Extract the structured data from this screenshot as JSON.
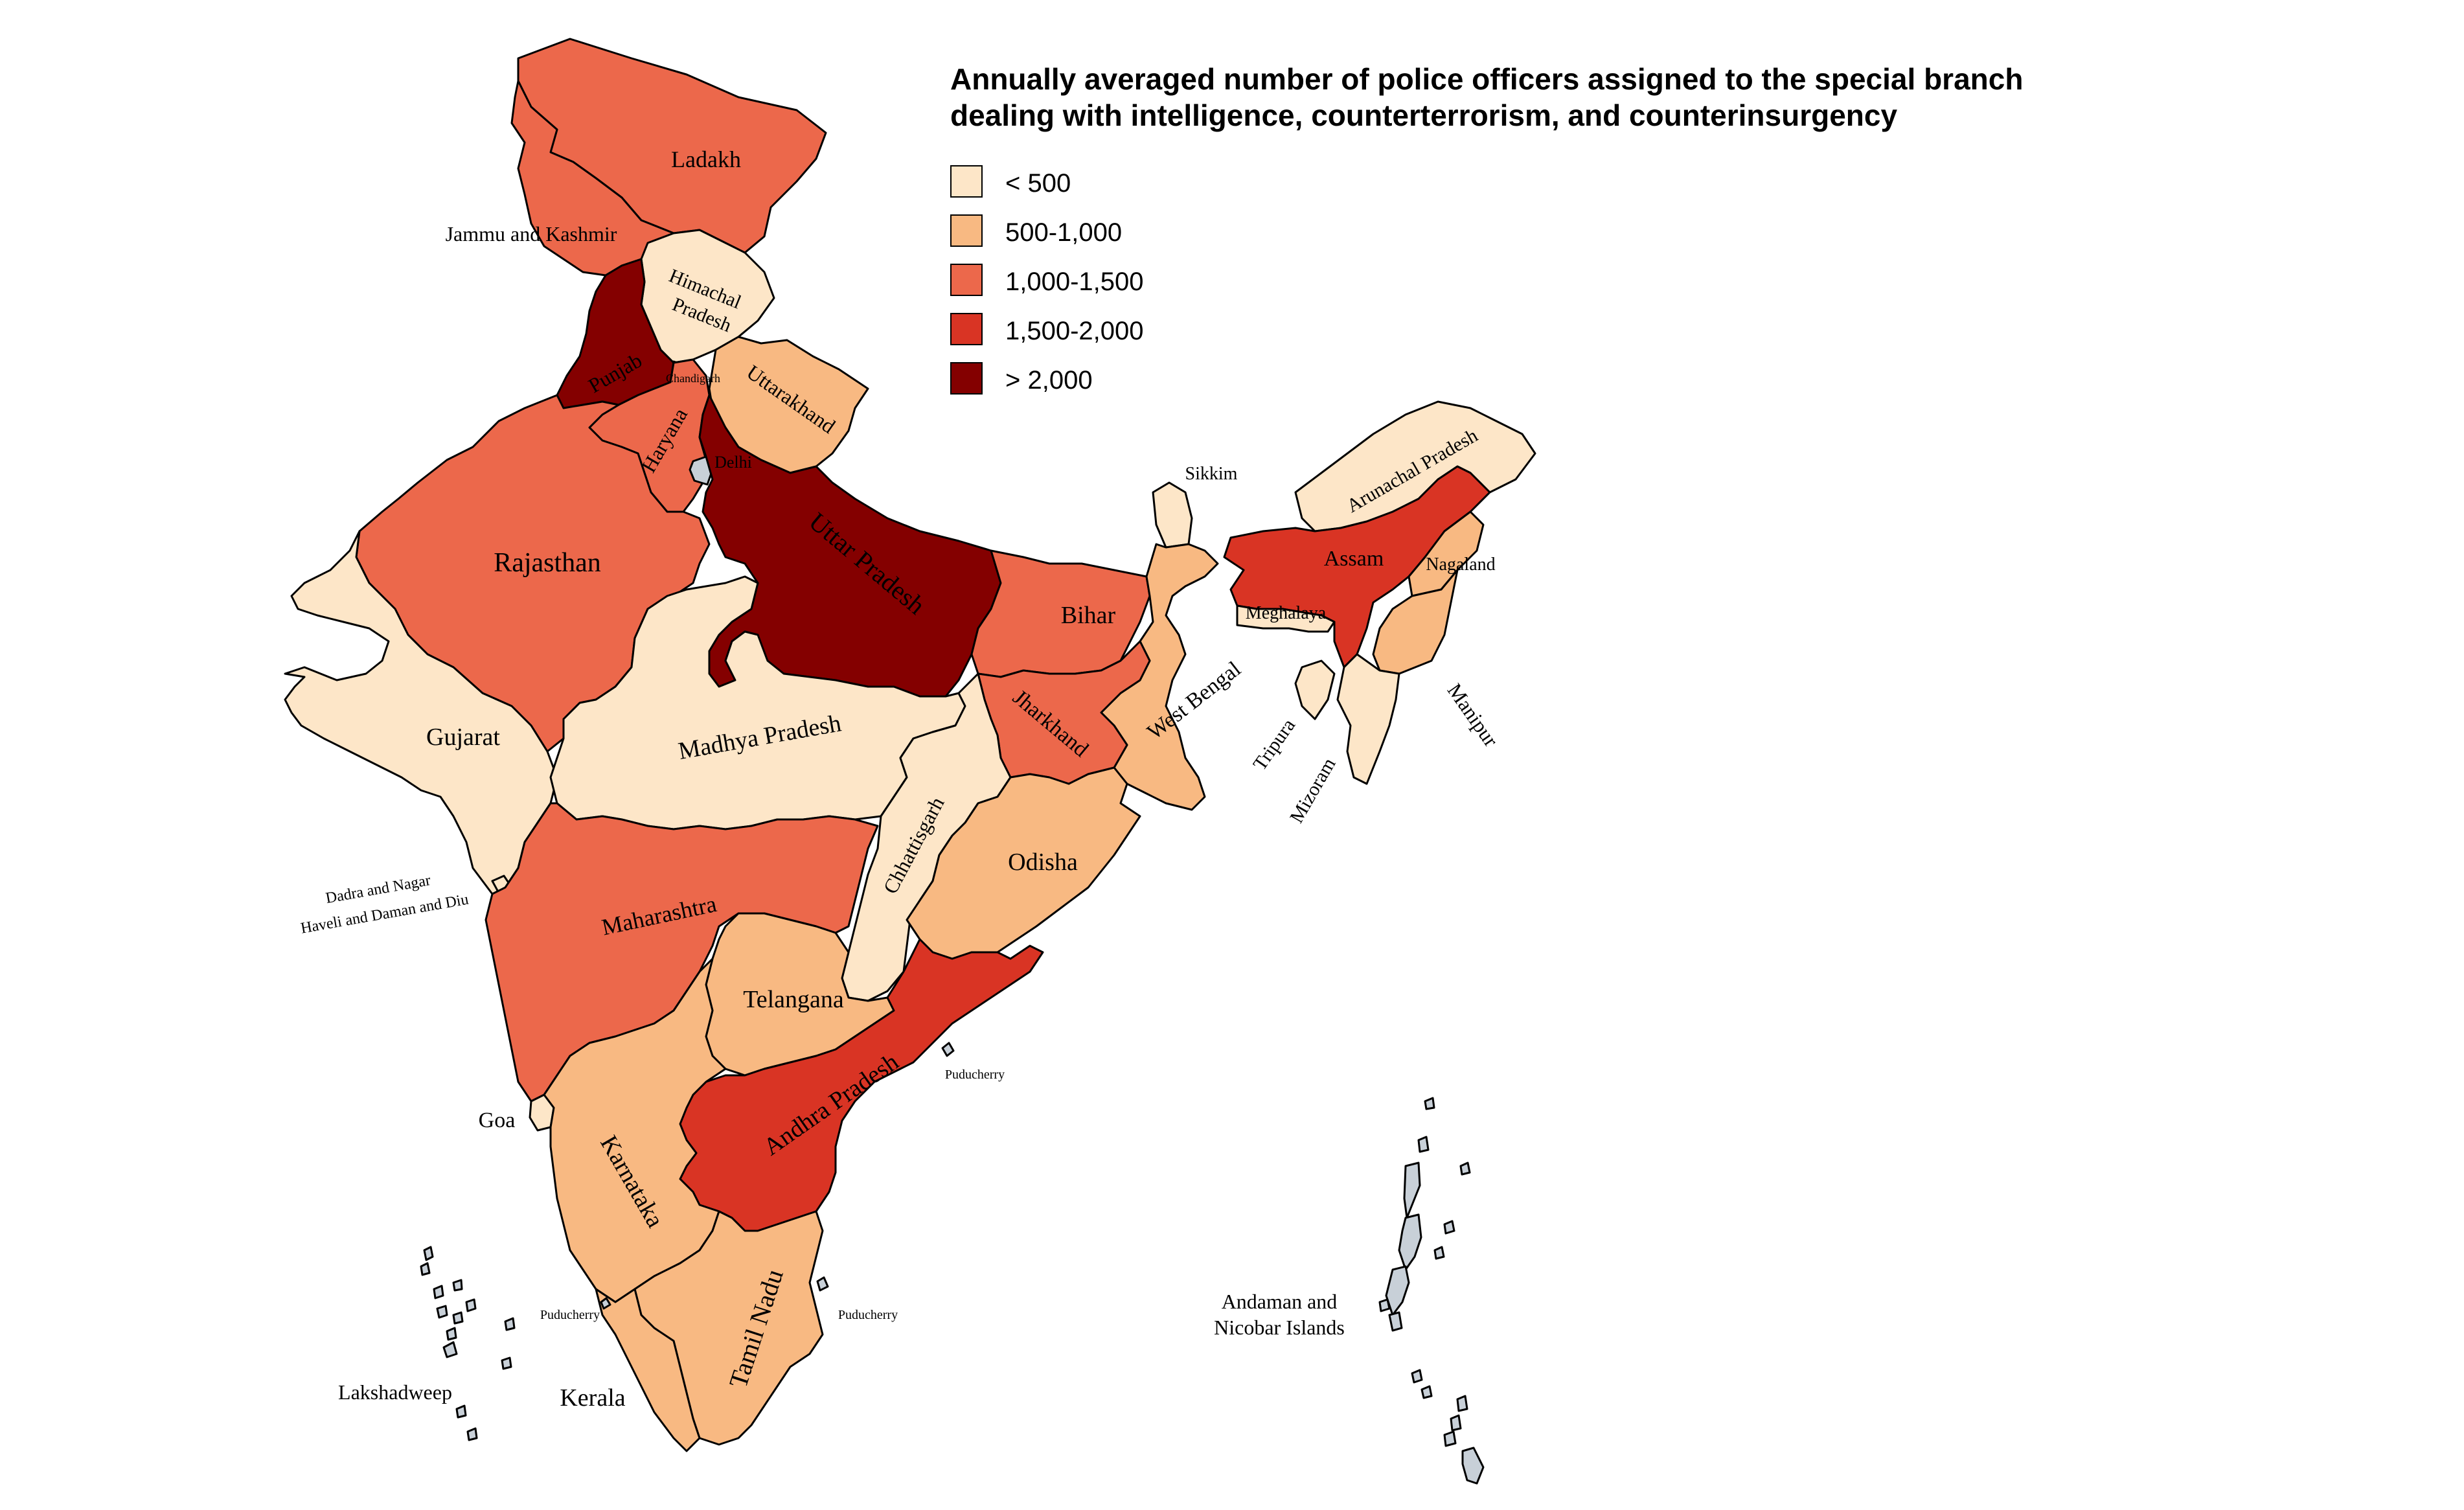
{
  "title": {
    "line1": "Annually averaged number of police officers assigned to the special branch",
    "line2": "dealing with intelligence, counterterrorism, and counterinsurgency"
  },
  "legend": [
    {
      "label": "< 500",
      "color": "#fde6c8"
    },
    {
      "label": "500-1,000",
      "color": "#f8b982"
    },
    {
      "label": "1,000-1,500",
      "color": "#ec684b"
    },
    {
      "label": "1,500-2,000",
      "color": "#d93424"
    },
    {
      "label": "> 2,000",
      "color": "#840000"
    }
  ],
  "no_data_color": "#c8d0d8",
  "regions": [
    {
      "name": "Ladakh",
      "category": "1,000-1,500"
    },
    {
      "name": "Jammu and Kashmir",
      "category": "1,000-1,500"
    },
    {
      "name": "Himachal Pradesh",
      "category": "< 500"
    },
    {
      "name": "Punjab",
      "category": "> 2,000"
    },
    {
      "name": "Chandigarh",
      "category": "< 500"
    },
    {
      "name": "Uttarakhand",
      "category": "500-1,000"
    },
    {
      "name": "Haryana",
      "category": "1,000-1,500"
    },
    {
      "name": "Delhi",
      "category": "no data"
    },
    {
      "name": "Rajasthan",
      "category": "1,000-1,500"
    },
    {
      "name": "Uttar Pradesh",
      "category": "> 2,000"
    },
    {
      "name": "Bihar",
      "category": "1,000-1,500"
    },
    {
      "name": "Sikkim",
      "category": "< 500"
    },
    {
      "name": "Arunachal Pradesh",
      "category": "< 500"
    },
    {
      "name": "Assam",
      "category": "1,500-2,000"
    },
    {
      "name": "Nagaland",
      "category": "500-1,000"
    },
    {
      "name": "Meghalaya",
      "category": "< 500"
    },
    {
      "name": "Manipur",
      "category": "500-1,000"
    },
    {
      "name": "Tripura",
      "category": "< 500"
    },
    {
      "name": "Mizoram",
      "category": "< 500"
    },
    {
      "name": "West Bengal",
      "category": "500-1,000"
    },
    {
      "name": "Jharkhand",
      "category": "1,000-1,500"
    },
    {
      "name": "Gujarat",
      "category": "< 500"
    },
    {
      "name": "Madhya Pradesh",
      "category": "< 500"
    },
    {
      "name": "Chhattisgarh",
      "category": "< 500"
    },
    {
      "name": "Odisha",
      "category": "500-1,000"
    },
    {
      "name": "Dadra and Nagar Haveli and Daman and Diu",
      "category": "< 500"
    },
    {
      "name": "Maharashtra",
      "category": "1,000-1,500"
    },
    {
      "name": "Telangana",
      "category": "500-1,000"
    },
    {
      "name": "Andhra Pradesh",
      "category": "1,500-2,000"
    },
    {
      "name": "Goa",
      "category": "< 500"
    },
    {
      "name": "Karnataka",
      "category": "500-1,000"
    },
    {
      "name": "Tamil Nadu",
      "category": "500-1,000"
    },
    {
      "name": "Kerala",
      "category": "500-1,000"
    },
    {
      "name": "Puducherry",
      "category": "no data"
    },
    {
      "name": "Lakshadweep",
      "category": "no data"
    },
    {
      "name": "Andaman and Nicobar Islands",
      "category": "no data"
    }
  ],
  "labels": {
    "ladakh": "Ladakh",
    "jk": "Jammu and Kashmir",
    "hp1": "Himachal",
    "hp2": "Pradesh",
    "punjab": "Punjab",
    "chandigarh": "Chandigarh",
    "uttarakhand": "Uttarakhand",
    "haryana": "Haryana",
    "delhi": "Delhi",
    "rajasthan": "Rajasthan",
    "up": "Uttar Pradesh",
    "bihar": "Bihar",
    "sikkim": "Sikkim",
    "arunachal": "Arunachal Pradesh",
    "assam": "Assam",
    "nagaland": "Nagaland",
    "meghalaya": "Meghalaya",
    "manipur": "Manipur",
    "tripura": "Tripura",
    "mizoram": "Mizoram",
    "wb": "West Bengal",
    "jharkhand": "Jharkhand",
    "gujarat": "Gujarat",
    "mp": "Madhya Pradesh",
    "chhattisgarh": "Chhattisgarh",
    "odisha": "Odisha",
    "dnh1": "Dadra and Nagar",
    "dnh2": "Haveli and Daman and Diu",
    "maharashtra": "Maharashtra",
    "telangana": "Telangana",
    "ap": "Andhra Pradesh",
    "puducherry_ap": "Puducherry",
    "goa": "Goa",
    "karnataka": "Karnataka",
    "tn": "Tamil Nadu",
    "puducherry_tn": "Puducherry",
    "puducherry_kl": "Puducherry",
    "kerala": "Kerala",
    "lakshadweep": "Lakshadweep",
    "andaman1": "Andaman and",
    "andaman2": "Nicobar Islands"
  }
}
